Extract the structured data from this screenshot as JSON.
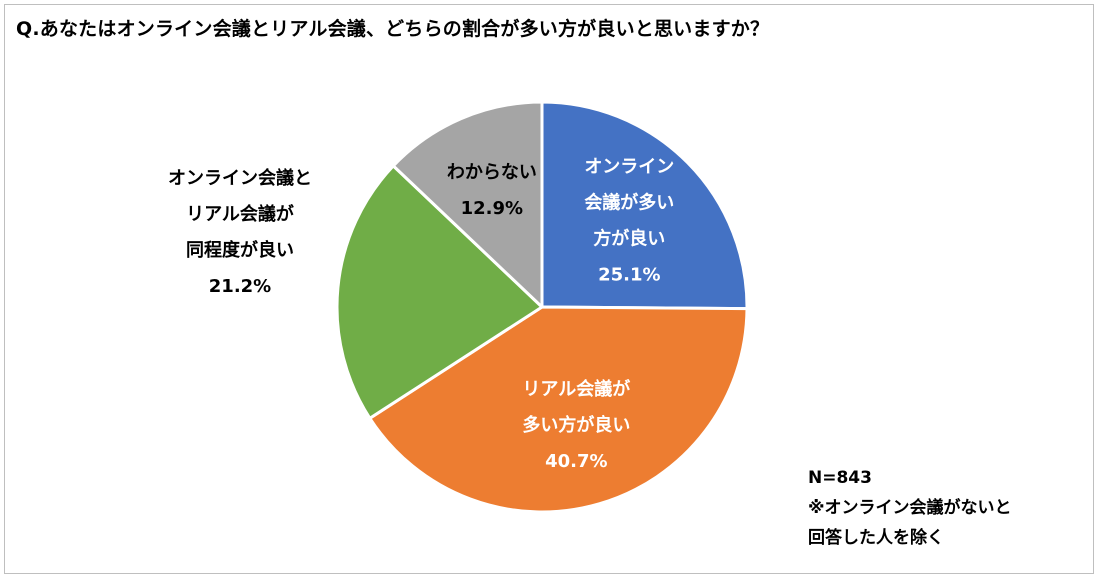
{
  "title": "Q.あなたはオンライン会議とリアル会議、どちらの割合が多い方が良いと思いますか？",
  "chart_data": {
    "type": "pie",
    "title": "Q.あなたはオンライン会議とリアル会議、どちらの割合が多い方が良いと思いますか？",
    "start_angle_deg": 0,
    "direction": "clockwise",
    "slices": [
      {
        "label_lines": [
          "オンライン",
          "会議が多い",
          "方が良い"
        ],
        "value": 25.1,
        "value_label": "25.1%",
        "color": "#4472c4",
        "label_color": "#ffffff",
        "label_position": "inside"
      },
      {
        "label_lines": [
          "リアル会議が",
          "多い方が良い"
        ],
        "value": 40.7,
        "value_label": "40.7%",
        "color": "#ed7d31",
        "label_color": "#ffffff",
        "label_position": "inside"
      },
      {
        "label_lines": [
          "オンライン会議と",
          "リアル会議が",
          "同程度が良い"
        ],
        "value": 21.2,
        "value_label": "21.2%",
        "color": "#70ad47",
        "label_color": "#000000",
        "label_position": "outside-left"
      },
      {
        "label_lines": [
          "わからない"
        ],
        "value": 12.9,
        "value_label": "12.9%",
        "color": "#a5a5a5",
        "label_color": "#000000",
        "label_position": "inside"
      }
    ]
  },
  "note": {
    "sample_size": "N=843",
    "footnote_line1": "※オンライン会議がないと",
    "footnote_line2": "回答した人を除く"
  }
}
